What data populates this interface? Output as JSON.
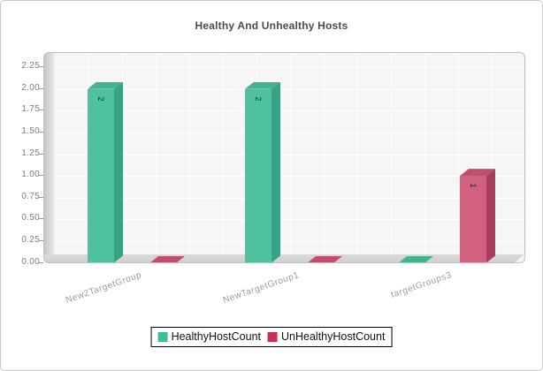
{
  "title": "Healthy And Unhealthy Hosts",
  "chart_data": {
    "type": "bar",
    "title": "Healthy And Unhealthy Hosts",
    "categories": [
      "New2TargetGroup",
      "NewTargetGroup1",
      "targetGroups3"
    ],
    "series": [
      {
        "name": "HealthyHostCount",
        "values": [
          2,
          2,
          0
        ],
        "color": "#4ec2a0",
        "side_color": "#3aa186",
        "top_color": "#43b392",
        "legend_color": "#3dbd98"
      },
      {
        "name": "UnHealthyHostCount",
        "values": [
          0,
          0,
          1
        ],
        "color": "#d2617f",
        "side_color": "#a93d5f",
        "top_color": "#c04f6e",
        "legend_color": "#c72f57"
      }
    ],
    "ylim": [
      0,
      2.25
    ],
    "ytick_step": 0.25,
    "yticks": [
      "2.25",
      "2.00",
      "1.75",
      "1.50",
      "1.25",
      "1.00",
      "0.75",
      "0.50",
      "0.25",
      "0.00"
    ],
    "bar_value_labels": true,
    "legend_position": "bottom",
    "grid": true,
    "style": "3d-bars"
  }
}
